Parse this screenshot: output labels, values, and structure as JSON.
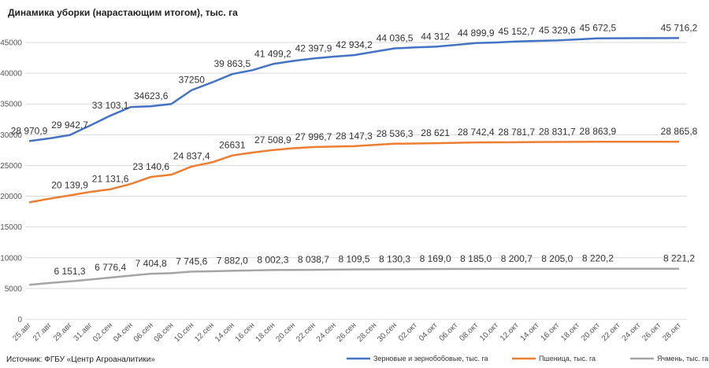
{
  "chart_data": {
    "type": "line",
    "title": "Динамика уборки (нарастающим итогом), тыс. га",
    "source": "Источник: ФГБУ «Центр Агроаналитики»",
    "categories": [
      "25.авг",
      "27.авг",
      "29.авг",
      "31.авг",
      "02.сен",
      "04.сен",
      "06.сен",
      "08.сен",
      "10.сен",
      "12.сен",
      "14.сен",
      "16.сен",
      "18.сен",
      "20.сен",
      "22.сен",
      "24.сен",
      "26.сен",
      "28.сен",
      "30.сен",
      "02.окт",
      "04.окт",
      "06.окт",
      "08.окт",
      "10.окт",
      "12.окт",
      "14.окт",
      "16.окт",
      "18.окт",
      "20.окт",
      "22.окт",
      "24.окт",
      "26.окт",
      "28.окт"
    ],
    "series": [
      {
        "name": "Зерновые и зернобобовые, тыс. га",
        "color": "#4472c4",
        "values": [
          28970.9,
          29400,
          29942.7,
          31500,
          33103.1,
          34500,
          34623.6,
          35000,
          37250,
          38500,
          39863.5,
          40500,
          41499.2,
          42000,
          42397.9,
          42700,
          42934.2,
          43500,
          44036.5,
          44200,
          44312,
          44600,
          44899.9,
          45000,
          45152.7,
          45250,
          45329.6,
          45500,
          45672.5,
          45690,
          45700,
          45710,
          45716.2
        ],
        "value_labels": [
          "28 970,9",
          null,
          "29 942,7",
          null,
          "33 103,1",
          null,
          "34623,6",
          null,
          "37250",
          null,
          "39 863,5",
          null,
          "41 499,2",
          null,
          "42 397,9",
          null,
          "42 934,2",
          null,
          "44 036,5",
          null,
          "44 312",
          null,
          "44 899,9",
          null,
          "45 152,7",
          null,
          "45 329,6",
          null,
          "45 672,5",
          null,
          null,
          null,
          "45 716,2"
        ]
      },
      {
        "name": "Пшеница, тыс. га",
        "color": "#ed7d31",
        "values": [
          19000,
          19600,
          20139.9,
          20700,
          21131.6,
          22000,
          23140.6,
          23500,
          24837.4,
          25500,
          26631,
          27100,
          27508.9,
          27800,
          27996.7,
          28080,
          28147.3,
          28350,
          28536.3,
          28580,
          28621,
          28690,
          28742.4,
          28760,
          28781.7,
          28810,
          28831.7,
          28850,
          28863.9,
          28864,
          28865,
          28865.5,
          28865.8
        ],
        "value_labels": [
          null,
          null,
          "20 139,9",
          null,
          "21 131,6",
          null,
          "23 140,6",
          null,
          "24 837,4",
          null,
          "26631",
          null,
          "27 508,9",
          null,
          "27 996,7",
          null,
          "28 147,3",
          null,
          "28 536,3",
          null,
          "28 621",
          null,
          "28 742,4",
          null,
          "28 781,7",
          null,
          "28 831,7",
          null,
          "28 863,9",
          null,
          null,
          null,
          "28 865,8"
        ]
      },
      {
        "name": "Ячмень, тыс. га",
        "color": "#a5a5a5",
        "values": [
          5600,
          5900,
          6151.3,
          6450,
          6776.4,
          7100,
          7404.8,
          7500,
          7745.6,
          7800,
          7882.0,
          7950,
          8002.3,
          8020,
          8038.7,
          8070,
          8109.5,
          8120,
          8130.3,
          8150,
          8169.0,
          8177,
          8185.0,
          8193,
          8200.7,
          8203,
          8205.0,
          8212,
          8220.2,
          8220.5,
          8220.8,
          8221,
          8221.2
        ],
        "value_labels": [
          null,
          null,
          "6 151,3",
          null,
          "6 776,4",
          null,
          "7 404,8",
          null,
          "7 745,6",
          null,
          "7 882,0",
          null,
          "8 002,3",
          null,
          "8 038,7",
          null,
          "8 109,5",
          null,
          "8 130,3",
          null,
          "8 169,0",
          null,
          "8 185,0",
          null,
          "8 200,7",
          null,
          "8 205,0",
          null,
          "8 220,2",
          null,
          null,
          null,
          "8 221,2"
        ]
      }
    ],
    "ylim": [
      0,
      48000
    ],
    "yticks": [
      0,
      5000,
      10000,
      15000,
      20000,
      25000,
      30000,
      35000,
      40000,
      45000
    ],
    "grid": true
  }
}
